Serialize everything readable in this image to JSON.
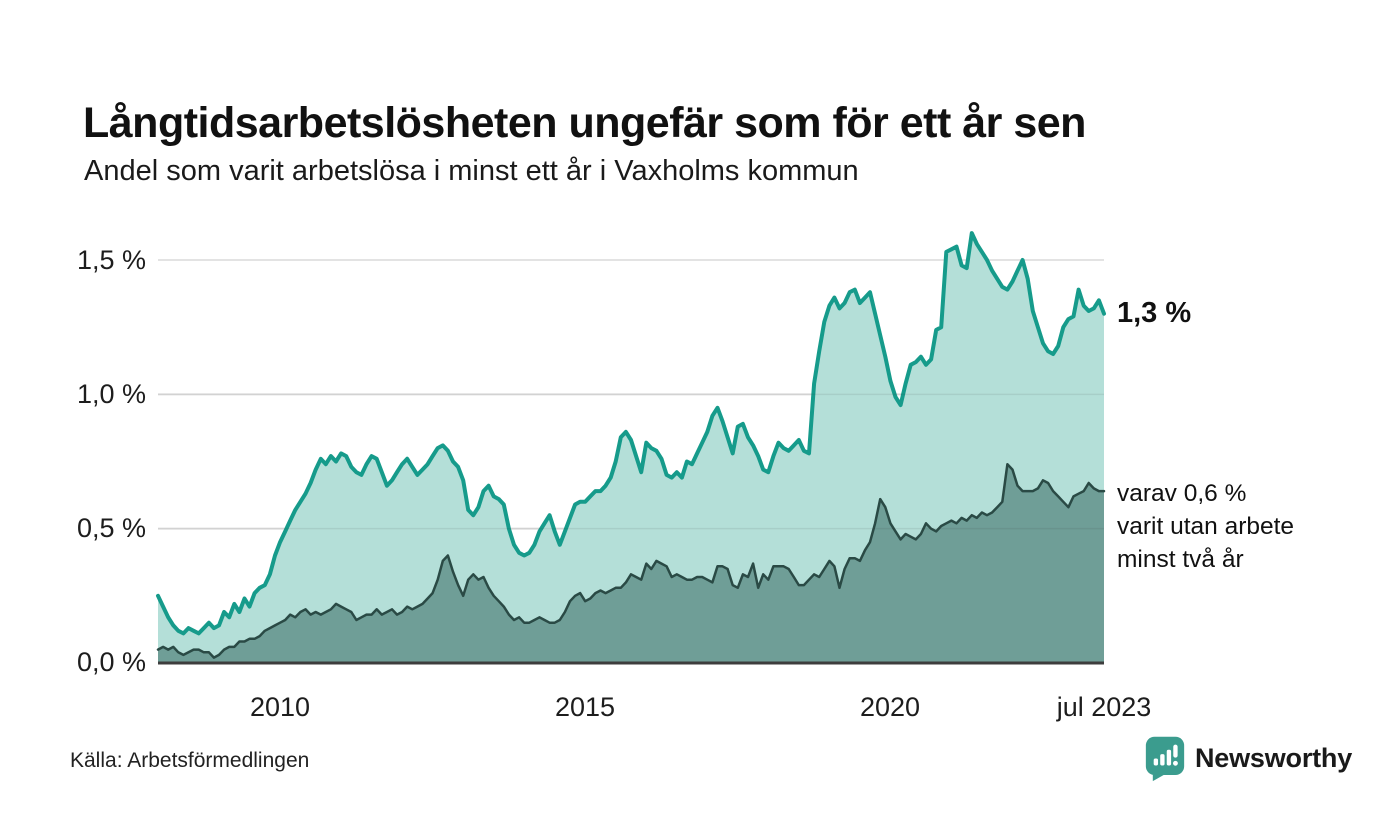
{
  "header": {
    "title": "Långtidsarbetslösheten ungefär som för ett år sen",
    "subtitle": "Andel som varit arbetslösa i minst ett år i Vaxholms kommun"
  },
  "chart": {
    "y_axis": {
      "ticks": [
        {
          "value": 1.5,
          "label": "1,5 %"
        },
        {
          "value": 1.0,
          "label": "1,0 %"
        },
        {
          "value": 0.5,
          "label": "0,5 %"
        },
        {
          "value": 0.0,
          "label": "0,0 %"
        }
      ]
    },
    "x_axis": {
      "ticks": [
        {
          "label": "2010",
          "month_index": 24
        },
        {
          "label": "2015",
          "month_index": 84
        },
        {
          "label": "2020",
          "month_index": 144
        },
        {
          "label": "jul 2023",
          "month_index": 186
        }
      ]
    },
    "annotations": {
      "series1_end_label": "1,3 %",
      "series2_end_lines": [
        "varav 0,6 %",
        "varit utan arbete",
        "minst två år"
      ]
    }
  },
  "chart_data": {
    "type": "area",
    "title": "Andel som varit arbetslösa i minst ett år i Vaxholms kommun",
    "x_start": "2008-01",
    "x_end": "2023-07",
    "x_step": "month",
    "ylim": [
      0,
      1.5
    ],
    "yticks": [
      0,
      0.5,
      1.0,
      1.5
    ],
    "grid": "horizontal",
    "legend_position": "right-annotations",
    "series": [
      {
        "name": "Arbetslösa minst ett år",
        "end_value": 1.3,
        "line_color": "#169b8b",
        "fill_color": "#b4dfd8",
        "line_width": 4,
        "values": [
          0.25,
          0.21,
          0.17,
          0.14,
          0.12,
          0.11,
          0.13,
          0.12,
          0.11,
          0.13,
          0.15,
          0.13,
          0.14,
          0.19,
          0.17,
          0.22,
          0.19,
          0.24,
          0.21,
          0.26,
          0.28,
          0.29,
          0.33,
          0.4,
          0.45,
          0.49,
          0.53,
          0.57,
          0.6,
          0.63,
          0.67,
          0.72,
          0.76,
          0.74,
          0.77,
          0.75,
          0.78,
          0.77,
          0.73,
          0.71,
          0.7,
          0.74,
          0.77,
          0.76,
          0.71,
          0.66,
          0.68,
          0.71,
          0.74,
          0.76,
          0.73,
          0.7,
          0.72,
          0.74,
          0.77,
          0.8,
          0.81,
          0.79,
          0.75,
          0.73,
          0.68,
          0.57,
          0.55,
          0.58,
          0.64,
          0.66,
          0.62,
          0.61,
          0.59,
          0.5,
          0.44,
          0.41,
          0.4,
          0.41,
          0.44,
          0.49,
          0.52,
          0.55,
          0.49,
          0.44,
          0.49,
          0.54,
          0.59,
          0.6,
          0.6,
          0.62,
          0.64,
          0.64,
          0.66,
          0.69,
          0.75,
          0.84,
          0.86,
          0.83,
          0.77,
          0.71,
          0.82,
          0.8,
          0.79,
          0.76,
          0.7,
          0.69,
          0.71,
          0.69,
          0.75,
          0.74,
          0.78,
          0.82,
          0.86,
          0.92,
          0.95,
          0.9,
          0.84,
          0.78,
          0.88,
          0.89,
          0.84,
          0.81,
          0.77,
          0.72,
          0.71,
          0.77,
          0.82,
          0.8,
          0.79,
          0.81,
          0.83,
          0.79,
          0.78,
          1.04,
          1.16,
          1.27,
          1.33,
          1.36,
          1.32,
          1.34,
          1.38,
          1.39,
          1.34,
          1.36,
          1.38,
          1.3,
          1.22,
          1.14,
          1.05,
          0.99,
          0.96,
          1.04,
          1.11,
          1.12,
          1.14,
          1.11,
          1.13,
          1.24,
          1.25,
          1.53,
          1.54,
          1.55,
          1.48,
          1.47,
          1.6,
          1.56,
          1.53,
          1.5,
          1.46,
          1.43,
          1.4,
          1.39,
          1.42,
          1.46,
          1.5,
          1.43,
          1.31,
          1.25,
          1.19,
          1.16,
          1.15,
          1.18,
          1.25,
          1.28,
          1.29,
          1.39,
          1.33,
          1.31,
          1.32,
          1.35,
          1.3
        ]
      },
      {
        "name": "varav utan arbete minst två år",
        "end_value": 0.6,
        "line_color": "#2a4a45",
        "fill_color": "#6f9e97",
        "line_width": 2.5,
        "values": [
          0.05,
          0.06,
          0.05,
          0.06,
          0.04,
          0.03,
          0.04,
          0.05,
          0.05,
          0.04,
          0.04,
          0.02,
          0.03,
          0.05,
          0.06,
          0.06,
          0.08,
          0.08,
          0.09,
          0.09,
          0.1,
          0.12,
          0.13,
          0.14,
          0.15,
          0.16,
          0.18,
          0.17,
          0.19,
          0.2,
          0.18,
          0.19,
          0.18,
          0.19,
          0.2,
          0.22,
          0.21,
          0.2,
          0.19,
          0.16,
          0.17,
          0.18,
          0.18,
          0.2,
          0.18,
          0.19,
          0.2,
          0.18,
          0.19,
          0.21,
          0.2,
          0.21,
          0.22,
          0.24,
          0.26,
          0.31,
          0.38,
          0.4,
          0.34,
          0.29,
          0.25,
          0.31,
          0.33,
          0.31,
          0.32,
          0.28,
          0.25,
          0.23,
          0.21,
          0.18,
          0.16,
          0.17,
          0.15,
          0.15,
          0.16,
          0.17,
          0.16,
          0.15,
          0.15,
          0.16,
          0.19,
          0.23,
          0.25,
          0.26,
          0.23,
          0.24,
          0.26,
          0.27,
          0.26,
          0.27,
          0.28,
          0.28,
          0.3,
          0.33,
          0.32,
          0.31,
          0.37,
          0.35,
          0.38,
          0.37,
          0.36,
          0.32,
          0.33,
          0.32,
          0.31,
          0.31,
          0.32,
          0.32,
          0.31,
          0.3,
          0.36,
          0.36,
          0.35,
          0.29,
          0.28,
          0.33,
          0.32,
          0.37,
          0.28,
          0.33,
          0.31,
          0.36,
          0.36,
          0.36,
          0.35,
          0.32,
          0.29,
          0.29,
          0.31,
          0.33,
          0.32,
          0.35,
          0.38,
          0.36,
          0.28,
          0.35,
          0.39,
          0.39,
          0.38,
          0.42,
          0.45,
          0.52,
          0.61,
          0.58,
          0.52,
          0.49,
          0.46,
          0.48,
          0.47,
          0.46,
          0.48,
          0.52,
          0.5,
          0.49,
          0.51,
          0.52,
          0.53,
          0.52,
          0.54,
          0.53,
          0.55,
          0.54,
          0.56,
          0.55,
          0.56,
          0.58,
          0.6,
          0.74,
          0.72,
          0.66,
          0.64,
          0.64,
          0.64,
          0.65,
          0.68,
          0.67,
          0.64,
          0.62,
          0.6,
          0.58,
          0.62,
          0.63,
          0.64,
          0.67,
          0.65,
          0.64,
          0.64
        ]
      }
    ]
  },
  "footer": {
    "source": "Källa: Arbetsförmedlingen",
    "brand": "Newsworthy"
  },
  "colors": {
    "grid": "#e3e3e3",
    "grid_overlay": "rgba(40,40,40,0.09)",
    "axis": "#3d3d3d",
    "text": "#1a1a1a",
    "brand_teal": "#3b9c8e"
  }
}
